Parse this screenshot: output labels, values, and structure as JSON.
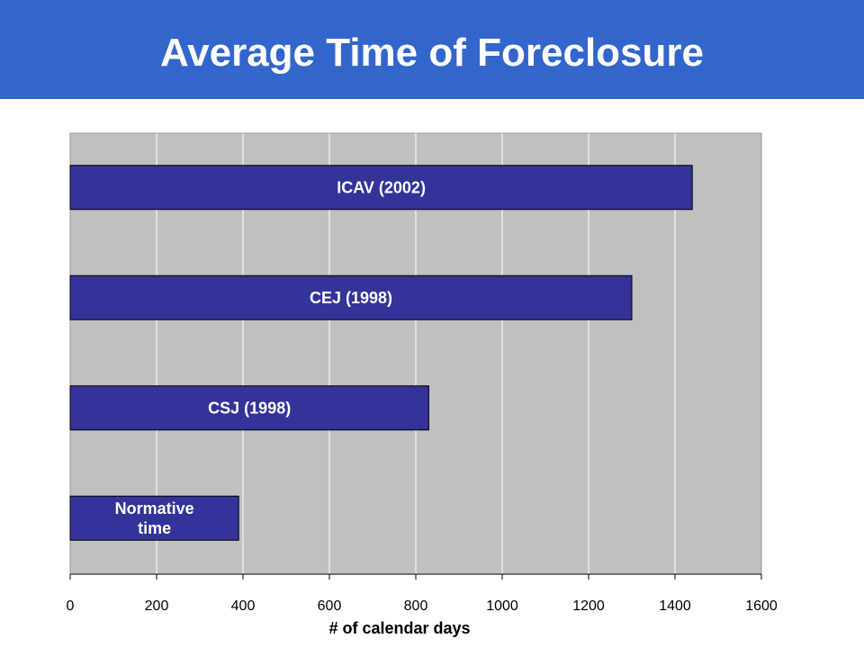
{
  "slide": {
    "title": "Average Time of Foreclosure"
  },
  "colors": {
    "banner": "#3366cc",
    "plot_background": "#c0c0c0",
    "bar_fill": "#333399",
    "gridline": "#ffffff"
  },
  "chart_data": {
    "type": "bar",
    "orientation": "horizontal",
    "categories": [
      "ICAV (2002)",
      "CEJ (1998)",
      "CSJ (1998)",
      "Normative time"
    ],
    "category_lines": [
      [
        "ICAV (2002)"
      ],
      [
        "CEJ (1998)"
      ],
      [
        "CSJ (1998)"
      ],
      [
        "Normative",
        "time"
      ]
    ],
    "values": [
      1440,
      1300,
      830,
      390
    ],
    "xlabel": "# of calendar days",
    "xlim": [
      0,
      1600
    ],
    "xticks": [
      0,
      200,
      400,
      600,
      800,
      1000,
      1200,
      1400,
      1600
    ],
    "grid": true,
    "legend": "none",
    "labels_inside_bars": true
  }
}
